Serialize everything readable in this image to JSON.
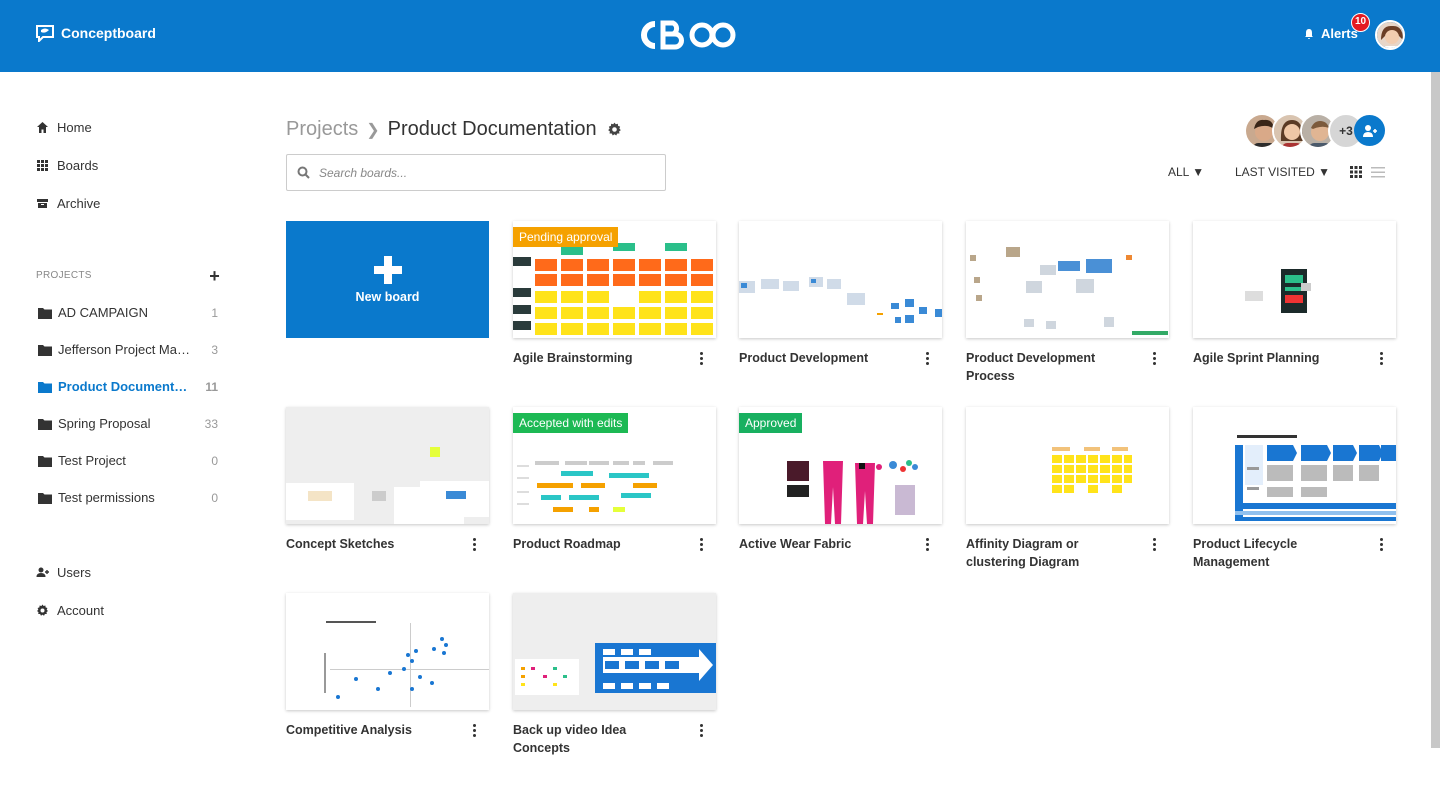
{
  "topbar": {
    "brand": "Conceptboard",
    "center_logo_text": "CB",
    "alerts_label": "Alerts",
    "alerts_count": "10"
  },
  "sidebar": {
    "nav": [
      {
        "label": "Home",
        "icon": "home-icon"
      },
      {
        "label": "Boards",
        "icon": "grid-icon"
      },
      {
        "label": "Archive",
        "icon": "archive-icon"
      }
    ],
    "projects_heading": "PROJECTS",
    "projects": [
      {
        "name": "AD CAMPAIGN",
        "count": "1",
        "active": false
      },
      {
        "name": "Jefferson Project May 2...",
        "count": "3",
        "active": false
      },
      {
        "name": "Product Documentati...",
        "count": "11",
        "active": true
      },
      {
        "name": "Spring Proposal",
        "count": "33",
        "active": false
      },
      {
        "name": "Test Project",
        "count": "0",
        "active": false
      },
      {
        "name": "Test permissions",
        "count": "0",
        "active": false
      }
    ],
    "bottom_nav": [
      {
        "label": "Users",
        "icon": "users-icon"
      },
      {
        "label": "Account",
        "icon": "gear-icon"
      }
    ]
  },
  "header": {
    "breadcrumb_root": "Projects",
    "breadcrumb_current": "Product Documentation",
    "search_placeholder": "Search boards...",
    "members_more": "+3",
    "filter_all": "ALL ▼",
    "sort": "LAST VISITED ▼"
  },
  "new_board_label": "New board",
  "boards": [
    {
      "title": "Agile Brainstorming",
      "status": "Pending approval"
    },
    {
      "title": "Product Development",
      "status": ""
    },
    {
      "title": "Product Development Process",
      "status": ""
    },
    {
      "title": "Agile Sprint Planning",
      "status": ""
    },
    {
      "title": "Concept Sketches",
      "status": ""
    },
    {
      "title": "Product Roadmap",
      "status": "Accepted with edits"
    },
    {
      "title": "Active Wear Fabric",
      "status": "Approved"
    },
    {
      "title": "Affinity Diagram or clustering Diagram",
      "status": ""
    },
    {
      "title": "Product Lifecycle Management",
      "status": ""
    },
    {
      "title": "Competitive Analysis",
      "status": ""
    },
    {
      "title": "Back up video Idea Concepts",
      "status": ""
    }
  ],
  "colors": {
    "brand_blue": "#0a79cc",
    "pending": "#f5a100",
    "accepted": "#1db954",
    "alert_red": "#e31b23"
  }
}
